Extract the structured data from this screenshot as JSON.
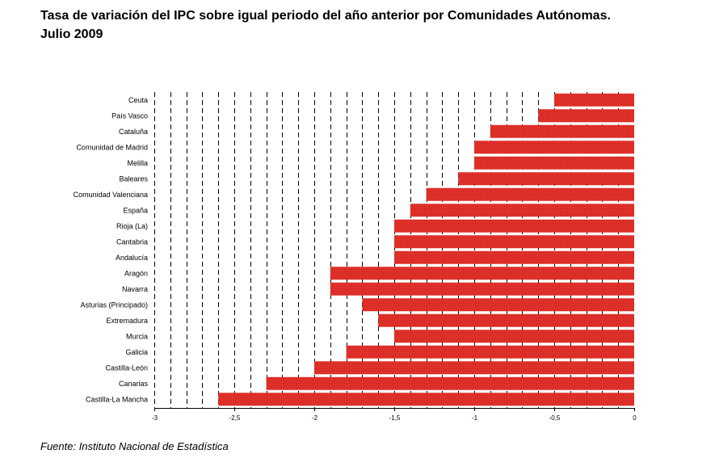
{
  "title_line1": "Tasa de variación del IPC sobre igual periodo del año anterior por Comunidades Autónomas.",
  "title_line2": "Julio 2009",
  "footer": "Fuente: Instituto Nacional de Estadística",
  "colors": {
    "bar": "#e0302a",
    "bar_edge": "#8b0e0e"
  },
  "chart_data": {
    "type": "bar",
    "orientation": "horizontal",
    "xlim": [
      -3,
      0
    ],
    "ticks": [
      "-3",
      "-2,5",
      "-2",
      "-1,5",
      "-1",
      "-0,5",
      "0"
    ],
    "grid": "vertical dashed every 0.1",
    "categories": [
      "Ceuta",
      "País Vasco",
      "Cataluña",
      "Comunidad de Madrid",
      "Melilla",
      "Baleares",
      "Comunidad Valenciana",
      "España",
      "Rioja (La)",
      "Cantabria",
      "Andalucía",
      "Aragón",
      "Navarra",
      "Asturias (Principado)",
      "Extremadura",
      "Murcia",
      "Galicia",
      "Castilla-León",
      "Canarias",
      "Castilla-La Mancha"
    ],
    "values": [
      -0.5,
      -0.6,
      -0.9,
      -1.0,
      -1.0,
      -1.1,
      -1.3,
      -1.4,
      -1.5,
      -1.5,
      -1.5,
      -1.9,
      -1.9,
      -1.7,
      -1.6,
      -1.5,
      -1.8,
      -2.0,
      -2.3,
      -2.6
    ]
  }
}
